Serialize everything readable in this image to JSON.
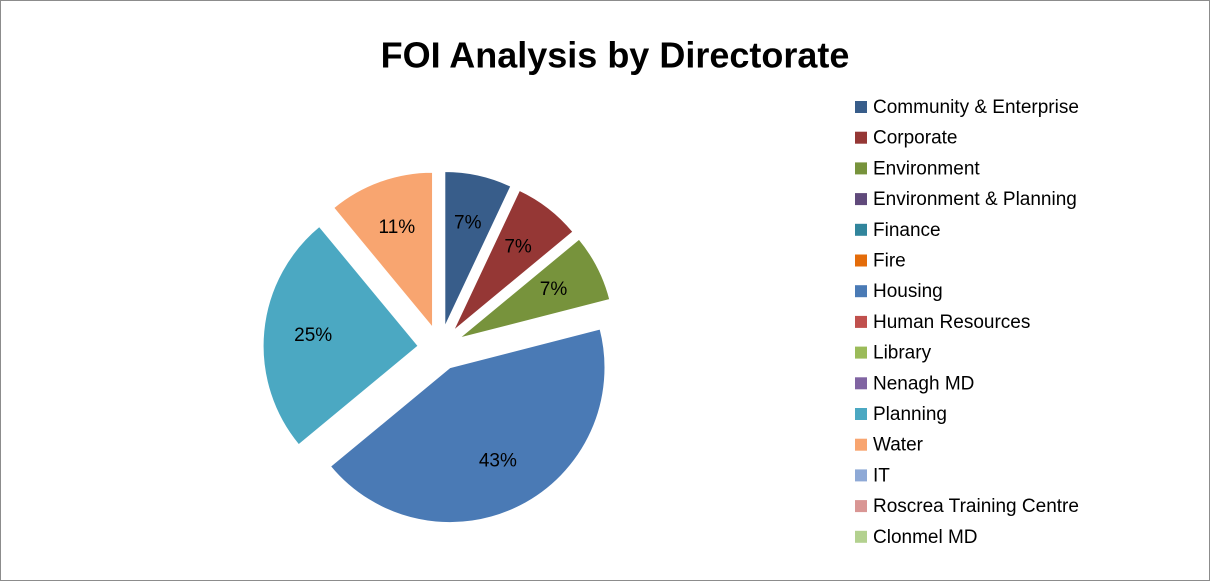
{
  "chart_data": {
    "type": "pie",
    "title": "FOI Analysis by Directorate",
    "categories": [
      "Community & Enterprise",
      "Corporate",
      "Environment",
      "Environment & Planning",
      "Finance",
      "Fire",
      "Housing",
      "Human Resources",
      "Library",
      "Nenagh MD",
      "Planning",
      "Water",
      "IT",
      "Roscrea Training Centre",
      "Clonmel MD"
    ],
    "values": [
      7,
      7,
      7,
      0,
      0,
      0,
      43,
      0,
      0,
      0,
      25,
      11,
      0,
      0,
      0
    ],
    "value_labels": [
      "7%",
      "7%",
      "7%",
      null,
      null,
      null,
      "43%",
      null,
      null,
      null,
      "25%",
      "11%",
      null,
      null,
      null
    ],
    "colors": [
      "#385D8A",
      "#953735",
      "#77933C",
      "#604A7B",
      "#31859C",
      "#E46C0A",
      "#4A7AB5",
      "#C0504D",
      "#9BBB59",
      "#8064A2",
      "#4BA8C2",
      "#F8A570",
      "#8EA9D6",
      "#D99694",
      "#B3D18F"
    ],
    "legend": "right"
  }
}
